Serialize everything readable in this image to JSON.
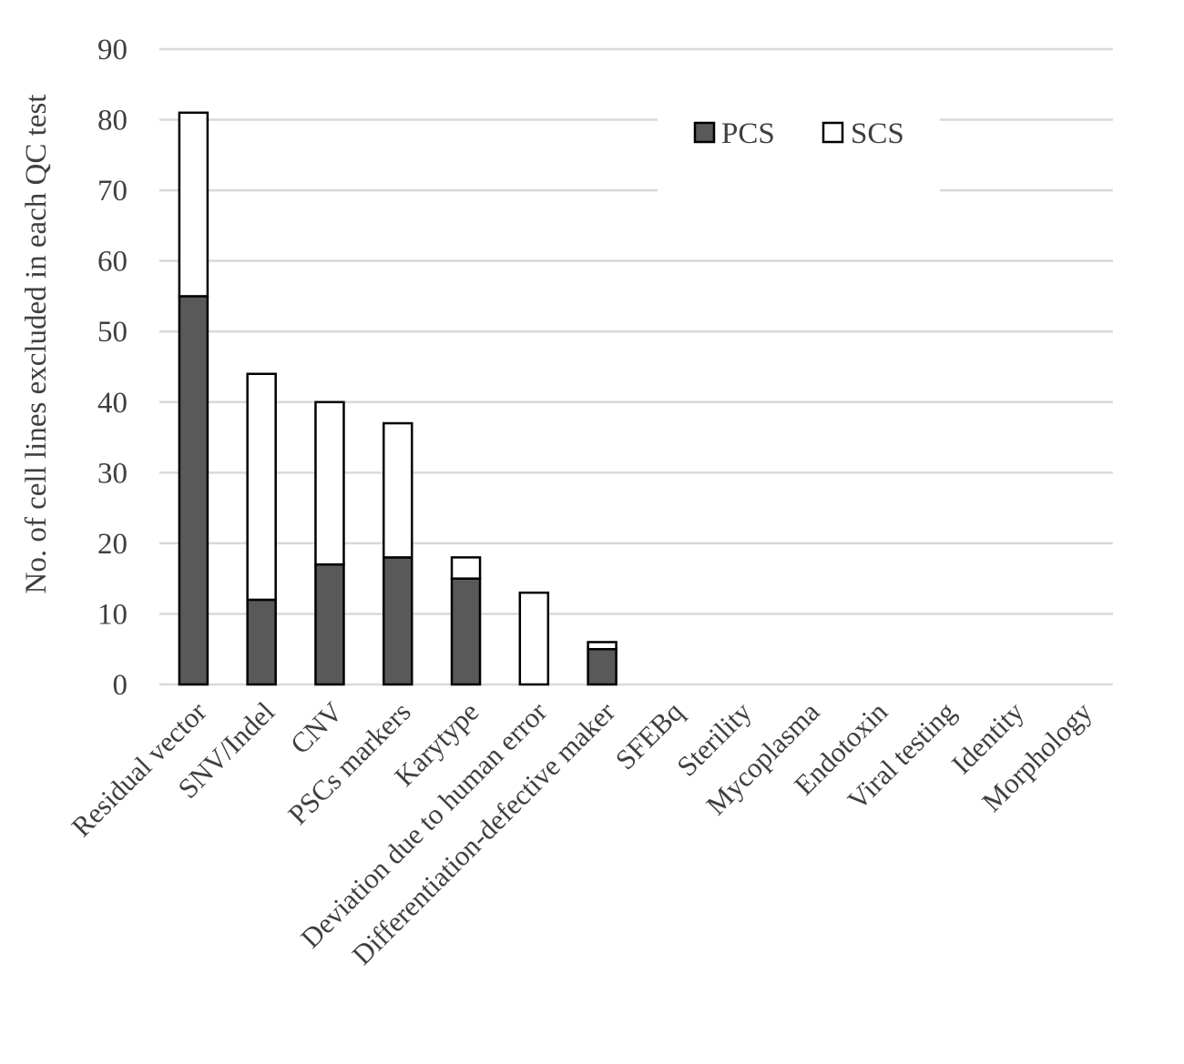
{
  "chart_data": {
    "type": "bar",
    "stacked": true,
    "categories": [
      "Residual vector",
      "SNV/Indel",
      "CNV",
      "PSCs markers",
      "Karytype",
      "Deviation due to human error",
      "Differentiation-defective maker",
      "SFEBq",
      "Sterility",
      "Mycoplasma",
      "Endotoxin",
      "Viral testing",
      "Identity",
      "Morphology"
    ],
    "series": [
      {
        "name": "PCS",
        "color": "#595959",
        "values": [
          55,
          12,
          17,
          18,
          15,
          0,
          5,
          0,
          0,
          0,
          0,
          0,
          0,
          0
        ]
      },
      {
        "name": "SCS",
        "color": "#ffffff",
        "values": [
          26,
          32,
          23,
          19,
          3,
          13,
          1,
          0,
          0,
          0,
          0,
          0,
          0,
          0
        ]
      }
    ],
    "title": "",
    "xlabel": "",
    "ylabel": "No. of cell lines excluded in each QC test",
    "ylim": [
      0,
      90
    ],
    "yticks": [
      0,
      10,
      20,
      30,
      40,
      50,
      60,
      70,
      80,
      90
    ],
    "grid": true,
    "legend": "top-right"
  }
}
